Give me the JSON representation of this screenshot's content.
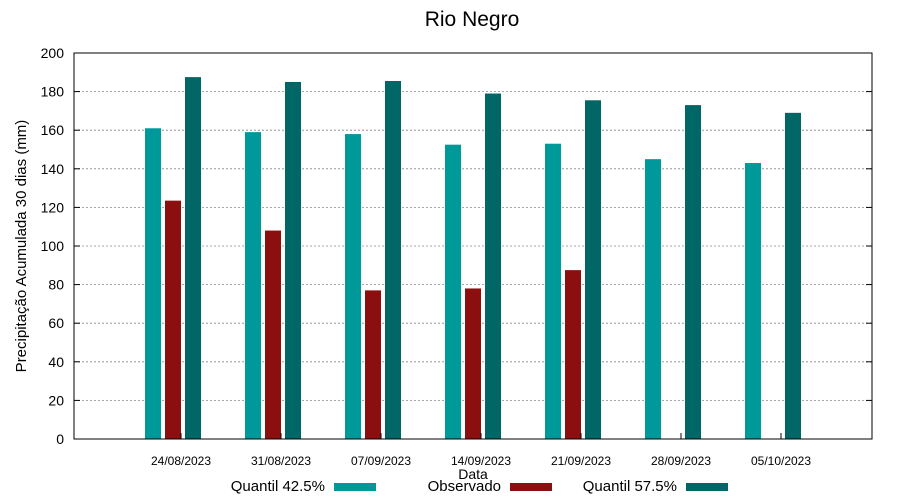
{
  "chart_data": {
    "type": "bar",
    "title": "Rio Negro",
    "xlabel": "Data",
    "ylabel": "Precipitação Acumulada 30 dias (mm)",
    "ylim": [
      0,
      200
    ],
    "yticks": [
      0,
      20,
      40,
      60,
      80,
      100,
      120,
      140,
      160,
      180,
      200
    ],
    "grid": true,
    "legend_position": "bottom",
    "categories": [
      "24/08/2023",
      "31/08/2023",
      "07/09/2023",
      "14/09/2023",
      "21/09/2023",
      "28/09/2023",
      "05/10/2023"
    ],
    "series": [
      {
        "name": "Quantil 42.5%",
        "color": "#009999",
        "values": [
          161,
          159,
          158,
          152.5,
          153,
          145,
          143
        ]
      },
      {
        "name": "Observado",
        "color": "#8b0f0f",
        "values": [
          123.5,
          108,
          77,
          78,
          87.5,
          null,
          null
        ]
      },
      {
        "name": "Quantil 57.5%",
        "color": "#006666",
        "values": [
          187.5,
          185,
          185.5,
          179,
          175.5,
          173,
          169
        ]
      }
    ]
  }
}
